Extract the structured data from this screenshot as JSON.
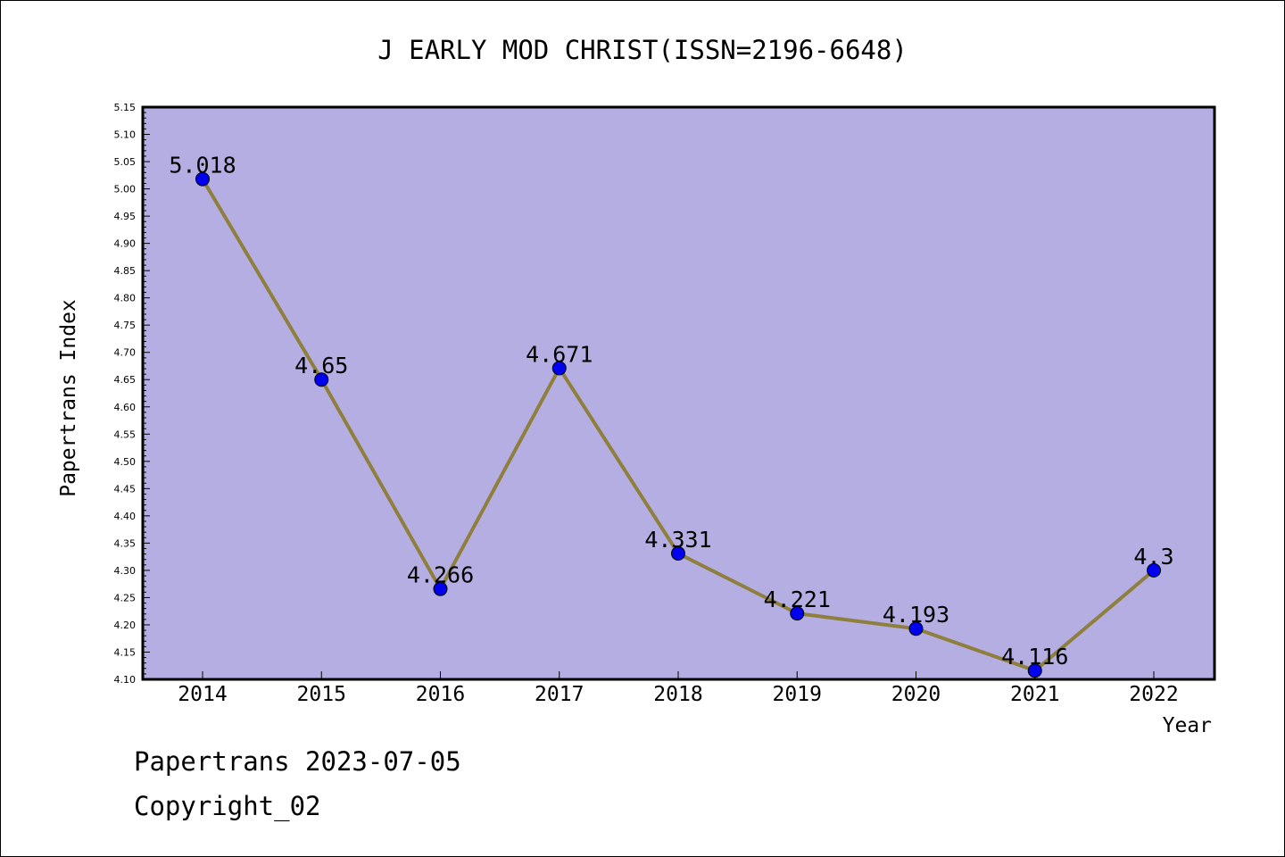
{
  "chart_data": {
    "type": "line",
    "title": "J EARLY MOD CHRIST(ISSN=2196-6648)",
    "xlabel": "Year",
    "ylabel": "Papertrans Index",
    "x": [
      "2014",
      "2015",
      "2016",
      "2017",
      "2018",
      "2019",
      "2020",
      "2021",
      "2022"
    ],
    "series": [
      {
        "values": [
          5.018,
          4.65,
          4.266,
          4.671,
          4.331,
          4.221,
          4.193,
          4.116,
          4.3
        ],
        "labels": [
          "5.018",
          "4.65",
          "4.266",
          "4.671",
          "4.331",
          "4.221",
          "4.193",
          "4.116",
          "4.3"
        ]
      }
    ],
    "ylim": [
      4.1,
      5.15
    ],
    "yticks": [
      "4.10",
      "4.15",
      "4.20",
      "4.25",
      "4.30",
      "4.35",
      "4.40",
      "4.45",
      "4.50",
      "4.55",
      "4.60",
      "4.65",
      "4.70",
      "4.75",
      "4.80",
      "4.85",
      "4.90",
      "4.95",
      "5.00",
      "5.05",
      "5.10",
      "5.15"
    ],
    "grid": false,
    "colors": {
      "plot_background": "#b5aee2",
      "line": "#8e7f3c",
      "marker": "#0000ee"
    }
  },
  "footer": {
    "line1": "Papertrans 2023-07-05",
    "line2": "Copyright_02"
  }
}
